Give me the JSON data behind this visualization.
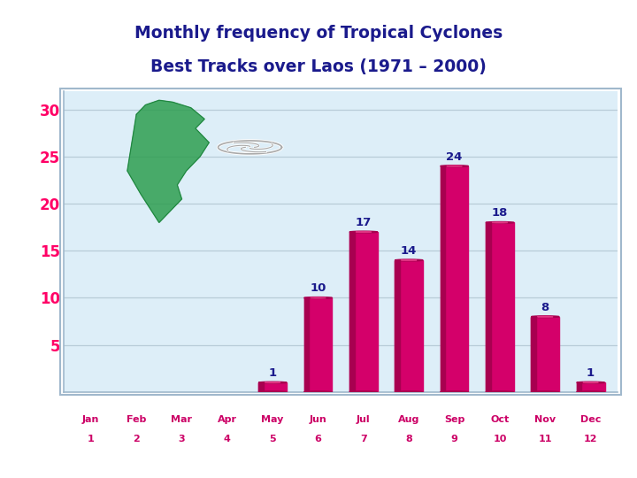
{
  "title_line1": "Monthly frequency of Tropical Cyclones",
  "title_line2": "Best Tracks over Laos (1971 – 2000)",
  "title_color": "#1a1a8c",
  "title_fontsize": 13.5,
  "months_top": [
    "Jan",
    "Feb",
    "Mar",
    "Apr",
    "May",
    "Jun",
    "Jul",
    "Aug",
    "Sep",
    "Oct",
    "Nov",
    "Dec"
  ],
  "months_bottom": [
    "1",
    "2",
    "3",
    "4",
    "5",
    "6",
    "7",
    "8",
    "9",
    "10",
    "11",
    "12"
  ],
  "values": [
    0,
    0,
    0,
    0,
    1,
    10,
    17,
    14,
    24,
    18,
    8,
    1
  ],
  "bar_color_main": "#d4006a",
  "bar_color_left": "#a80050",
  "bar_color_top": "#e8007a",
  "label_color_values": "#1a1a8c",
  "label_color_xticks": "#cc0066",
  "label_color_yticks": "#ff0066",
  "ytick_values": [
    5,
    10,
    15,
    20,
    25,
    30
  ],
  "ylim": [
    0,
    32
  ],
  "background_color": "#ddeef8",
  "outer_bg": "#ffffff",
  "panel_edge_color": "#a0b8cc",
  "grid_color": "#b8ccd8"
}
